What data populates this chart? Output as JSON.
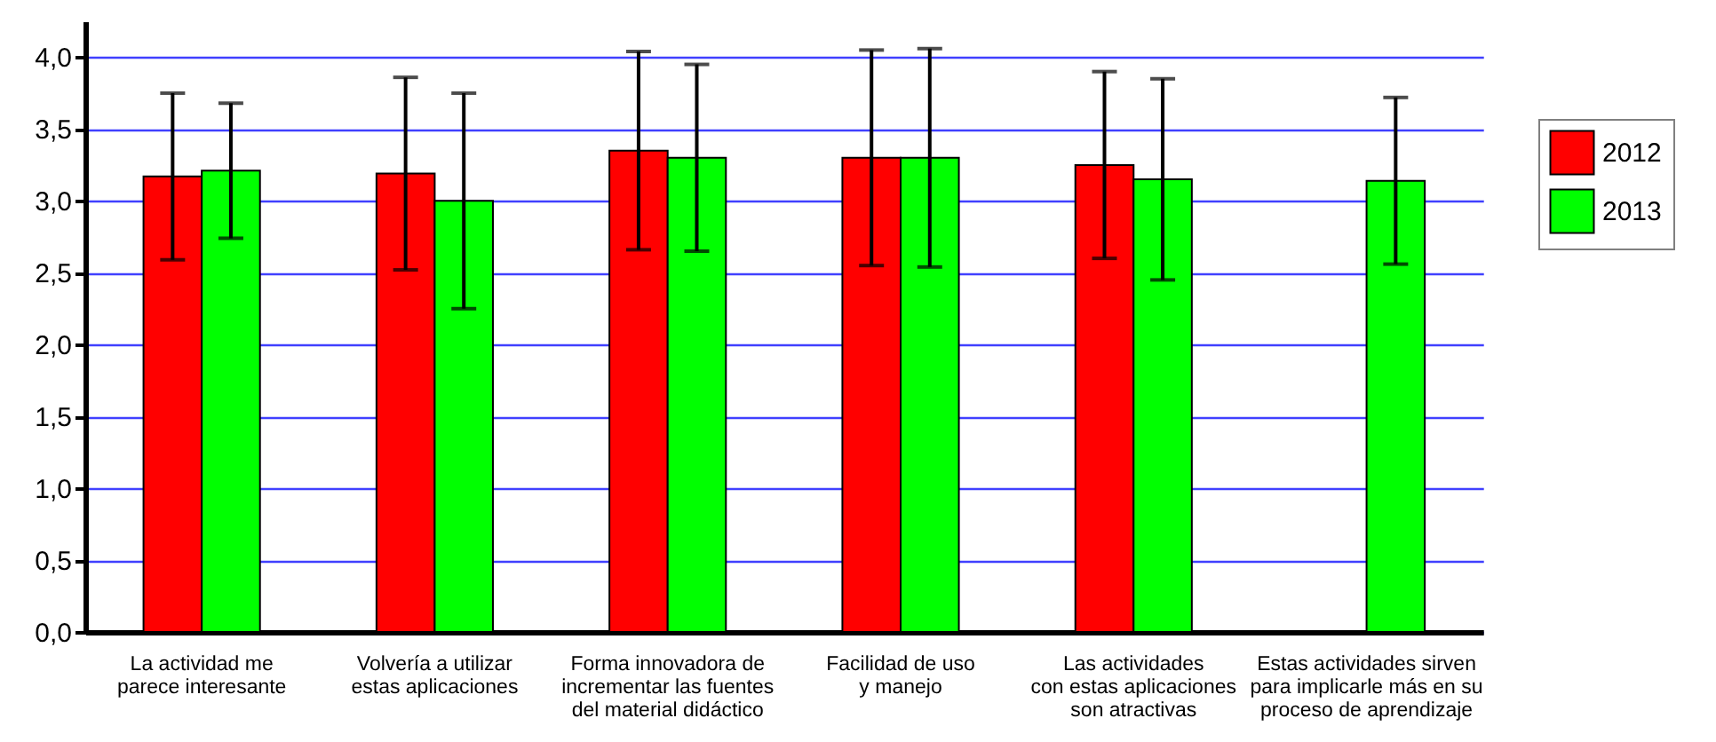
{
  "chart_data": {
    "type": "bar",
    "categories": [
      "La actividad me\nparece interesante",
      "Volvería a utilizar\nestas aplicaciones",
      "Forma innovadora de\nincrementar las fuentes\ndel material didáctico",
      "Facilidad de uso\ny manejo",
      "Las actividades\ncon estas aplicaciones\nson atractivas",
      "Estas actividades sirven\npara implicarle más en su\nproceso de aprendizaje"
    ],
    "series": [
      {
        "name": "2012",
        "color": "#ff0000",
        "values": [
          3.17,
          3.19,
          3.35,
          3.3,
          3.25,
          null
        ],
        "errors": [
          0.58,
          0.67,
          0.69,
          0.75,
          0.65,
          null
        ]
      },
      {
        "name": "2013",
        "color": "#00ff00",
        "values": [
          3.21,
          3.0,
          3.3,
          3.3,
          3.15,
          3.14
        ],
        "errors": [
          0.47,
          0.75,
          0.65,
          0.76,
          0.7,
          0.58
        ]
      }
    ],
    "ylim": [
      0,
      4.25
    ],
    "yticks": [
      {
        "value": 0,
        "label": "0,0"
      },
      {
        "value": 0.5,
        "label": "0,5"
      },
      {
        "value": 1,
        "label": "1,0"
      },
      {
        "value": 1.5,
        "label": "1,5"
      },
      {
        "value": 2,
        "label": "2,0"
      },
      {
        "value": 2.5,
        "label": "2,5"
      },
      {
        "value": 3,
        "label": "3,0"
      },
      {
        "value": 3.5,
        "label": "3,5"
      },
      {
        "value": 4,
        "label": "4,0"
      }
    ],
    "grid": "y",
    "legend": "top right"
  }
}
